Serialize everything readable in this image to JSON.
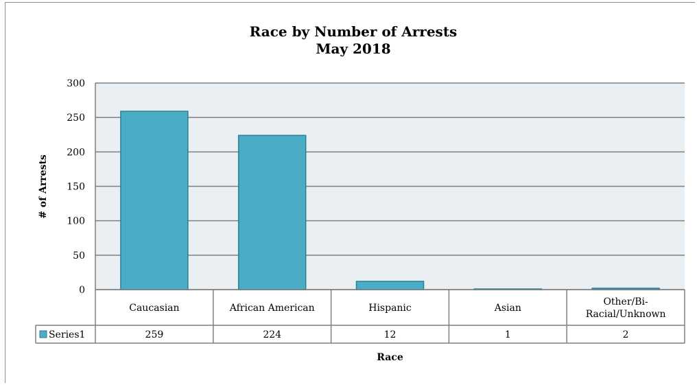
{
  "chart_data": {
    "type": "bar",
    "title": "Race by Number of Arrests",
    "subtitle": "May 2018",
    "xlabel": "Race",
    "ylabel": "# of Arrests",
    "categories": [
      "Caucasian",
      "African American",
      "Hispanic",
      "Asian",
      "Other/Bi-Racial/Unknown"
    ],
    "category_lines": [
      [
        "Caucasian"
      ],
      [
        "African American"
      ],
      [
        "Hispanic"
      ],
      [
        "Asian"
      ],
      [
        "Other/Bi-",
        "Racial/Unknown"
      ]
    ],
    "series": [
      {
        "name": "Series1",
        "values": [
          259,
          224,
          12,
          1,
          2
        ]
      }
    ],
    "ylim": [
      0,
      300
    ],
    "yticks": [
      0,
      50,
      100,
      150,
      200,
      250,
      300
    ],
    "grid": true,
    "legend": "data-table",
    "colors": {
      "bar": "#4bacc6",
      "bar_border": "#2e7f94",
      "plot_bg": "#e9eff3",
      "gridline": "#7f7f7f",
      "table_border": "#7f7f7f"
    }
  }
}
